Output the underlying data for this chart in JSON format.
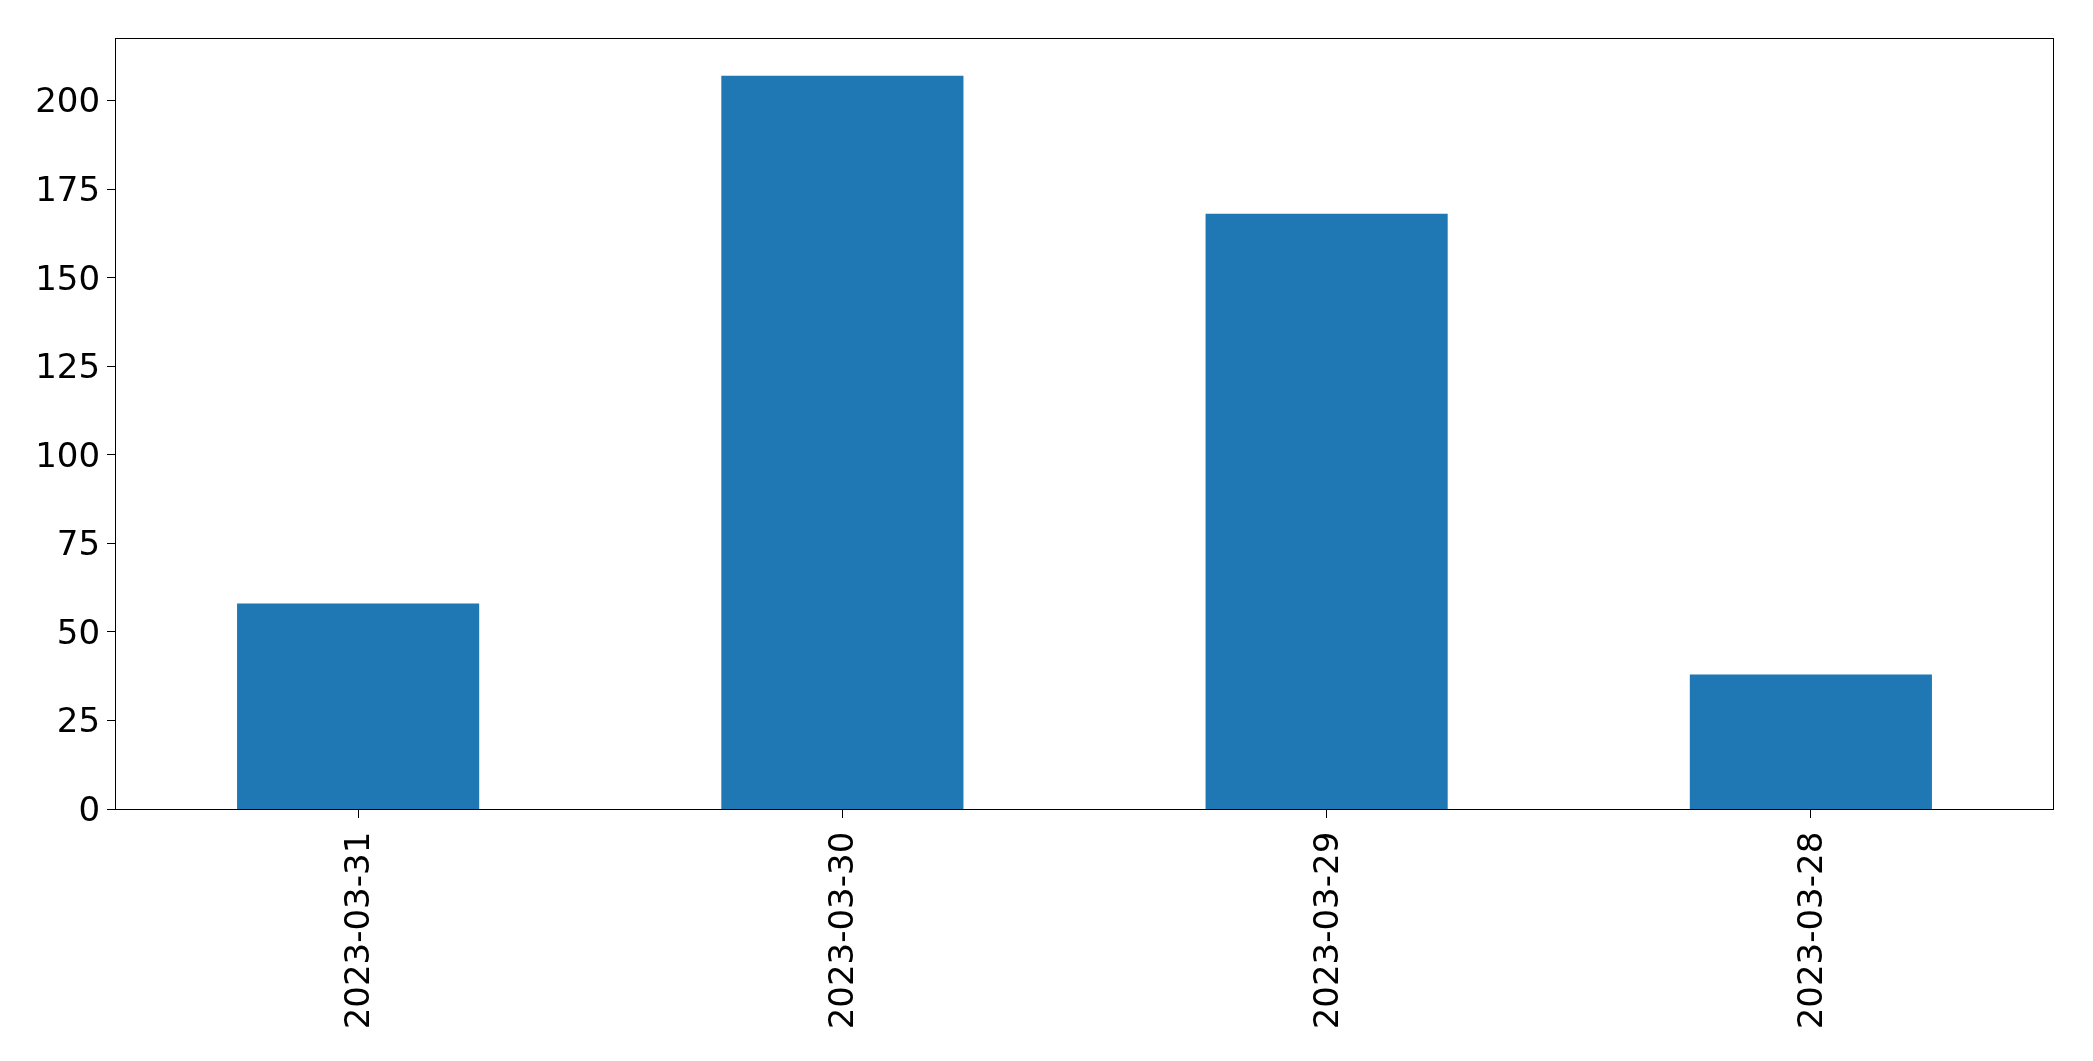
{
  "chart_data": {
    "type": "bar",
    "categories": [
      "2023-03-31",
      "2023-03-30",
      "2023-03-29",
      "2023-03-28"
    ],
    "values": [
      58,
      207,
      168,
      38
    ],
    "color": "#1f77b4",
    "ylim": [
      0,
      217.35
    ],
    "yticks": [
      0,
      25,
      50,
      75,
      100,
      125,
      150,
      175,
      200
    ]
  }
}
